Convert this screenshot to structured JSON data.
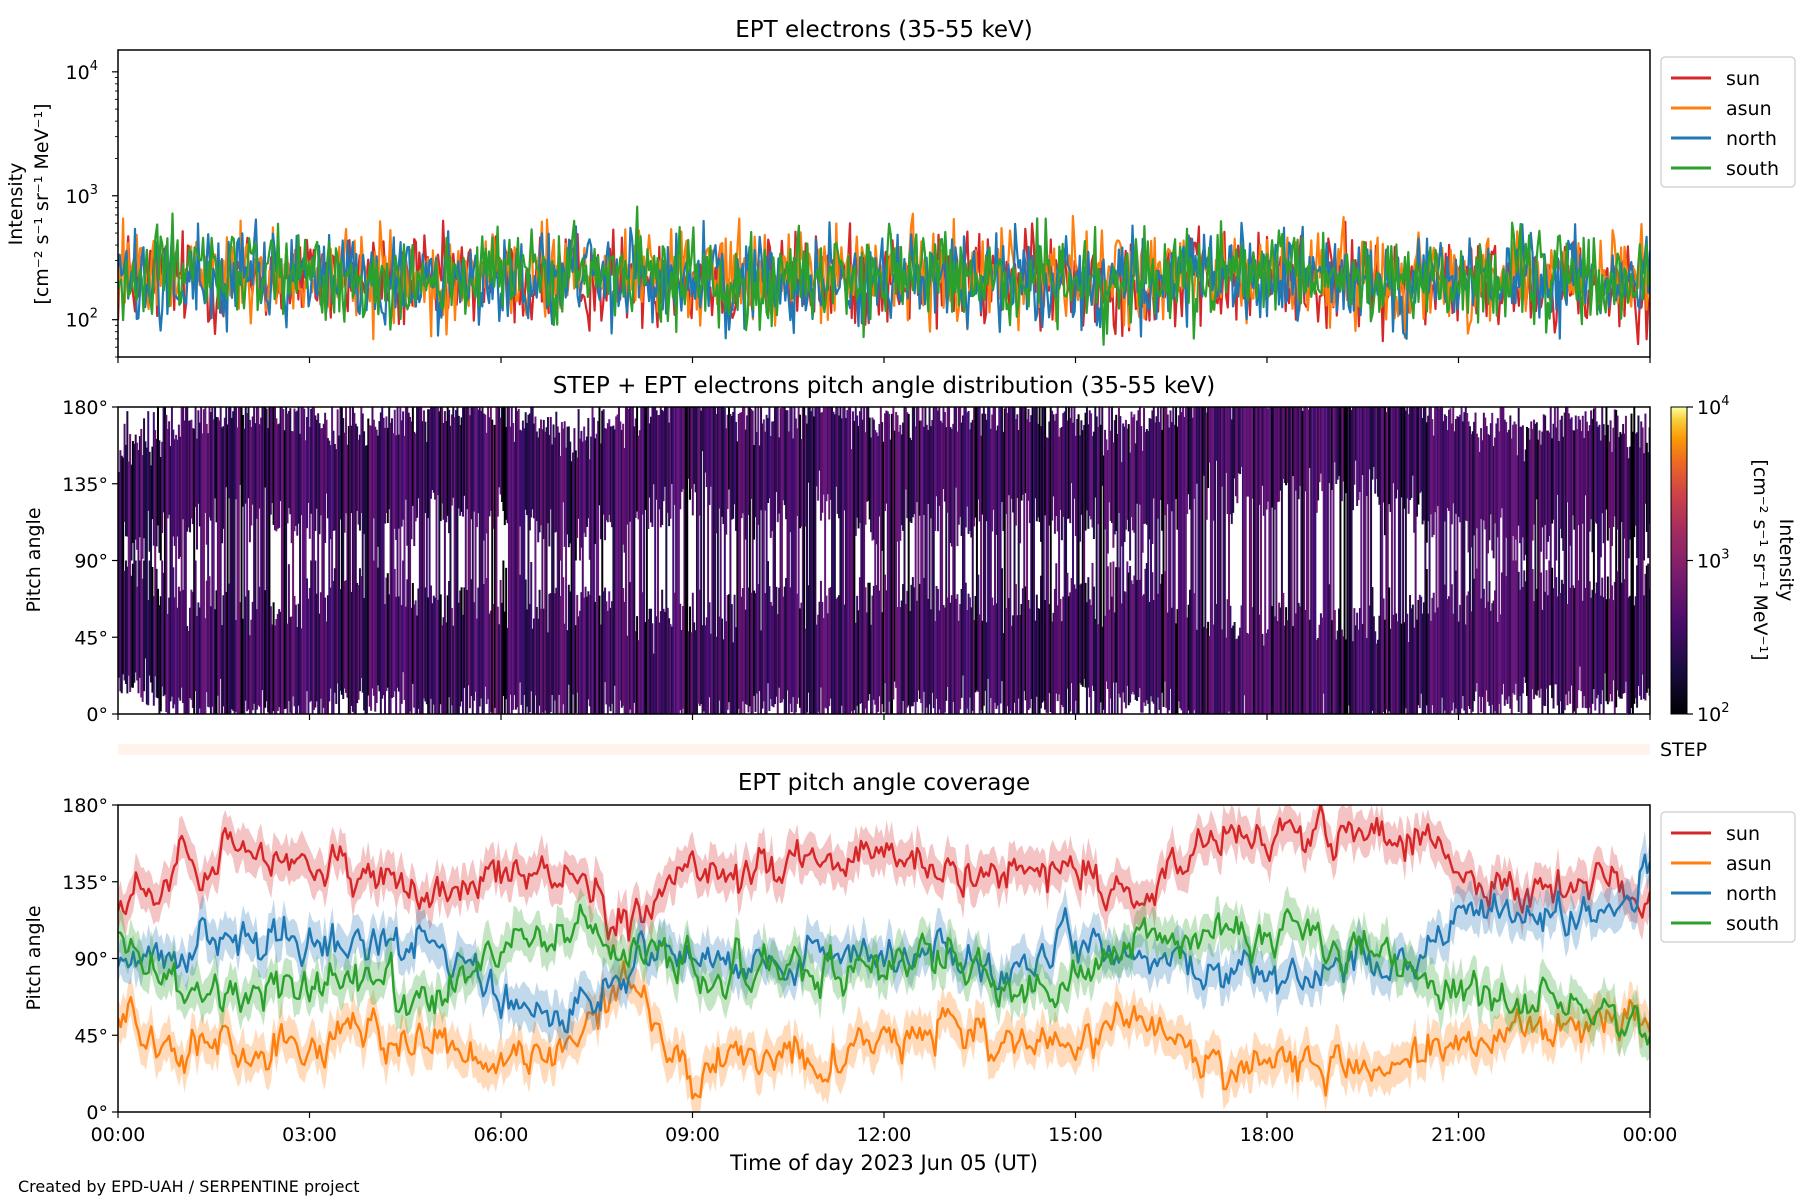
{
  "figure": {
    "credit": "Created by EPD-UAH / SERPENTINE project",
    "time_axis": {
      "label": "Time of day 2023 Jun 05 (UT)",
      "ticks": [
        "00:00",
        "03:00",
        "06:00",
        "09:00",
        "12:00",
        "15:00",
        "18:00",
        "21:00",
        "00:00"
      ],
      "range_hours": [
        0,
        24
      ]
    },
    "colors": {
      "sun": "#d62728",
      "asun": "#ff7f0e",
      "north": "#1f77b4",
      "south": "#2ca02c"
    }
  },
  "chart_data": [
    {
      "id": "intensity",
      "type": "line",
      "title": "EPT electrons (35-55 keV)",
      "ylabel_line1": "Intensity",
      "ylabel_line2": "[cm⁻² s⁻¹ sr⁻¹ MeV⁻¹]",
      "yscale": "log",
      "ylim": [
        50,
        15000
      ],
      "yticks": [
        {
          "value": 100,
          "label": "10",
          "exp": "2"
        },
        {
          "value": 1000,
          "label": "10",
          "exp": "3"
        },
        {
          "value": 10000,
          "label": "10",
          "exp": "4"
        }
      ],
      "legend_position": "outside-right",
      "x": [
        0,
        1,
        2,
        3,
        4,
        5,
        6,
        7,
        8,
        9,
        10,
        11,
        12,
        13,
        14,
        15,
        16,
        17,
        18,
        19,
        20,
        21,
        22,
        23,
        24
      ],
      "series": [
        {
          "name": "sun",
          "color": "#d62728",
          "values": [
            250,
            240,
            230,
            245,
            235,
            225,
            240,
            230,
            250,
            240,
            225,
            235,
            245,
            230,
            240,
            235,
            230,
            225,
            240,
            235,
            230,
            225,
            230,
            220,
            225
          ]
        },
        {
          "name": "asun",
          "color": "#ff7f0e",
          "values": [
            280,
            270,
            260,
            265,
            255,
            250,
            260,
            255,
            265,
            260,
            250,
            255,
            265,
            255,
            260,
            255,
            250,
            245,
            260,
            255,
            250,
            245,
            250,
            240,
            245
          ]
        },
        {
          "name": "north",
          "color": "#1f77b4",
          "values": [
            260,
            250,
            245,
            250,
            240,
            235,
            245,
            240,
            250,
            245,
            240,
            245,
            250,
            240,
            245,
            240,
            235,
            230,
            245,
            240,
            235,
            230,
            235,
            228,
            232
          ]
        },
        {
          "name": "south",
          "color": "#2ca02c",
          "values": [
            270,
            260,
            250,
            255,
            250,
            245,
            255,
            245,
            255,
            250,
            245,
            250,
            255,
            245,
            250,
            245,
            240,
            238,
            250,
            245,
            240,
            236,
            240,
            232,
            236
          ]
        }
      ]
    },
    {
      "id": "pad",
      "type": "heatmap",
      "title": "STEP + EPT electrons pitch angle distribution (35-55 keV)",
      "ylabel": "Pitch angle",
      "ylim": [
        0,
        180
      ],
      "yticks": [
        "0°",
        "45°",
        "90°",
        "135°",
        "180°"
      ],
      "colorbar": {
        "label": "Intensity",
        "units": "[cm⁻² s⁻¹ sr⁻¹ MeV⁻¹]",
        "scale": "log",
        "range": [
          100,
          10000
        ],
        "ticks": [
          {
            "value": 100,
            "label": "10",
            "exp": "2"
          },
          {
            "value": 1000,
            "label": "10",
            "exp": "3"
          },
          {
            "value": 10000,
            "label": "10",
            "exp": "4"
          }
        ],
        "colormap": "inferno"
      },
      "pitch_bands_sun_deg": [
        125,
        140,
        150,
        145,
        135,
        150,
        150,
        130,
        145,
        160,
        140,
        150,
        140,
        145,
        150,
        140,
        135,
        160,
        160,
        165,
        160,
        140,
        135,
        140,
        130
      ],
      "pitch_bands_asun_deg": [
        55,
        40,
        35,
        40,
        45,
        35,
        40,
        40,
        30,
        25,
        40,
        35,
        40,
        40,
        35,
        40,
        45,
        25,
        25,
        25,
        25,
        40,
        45,
        45,
        50
      ],
      "step_strip_label": "STEP"
    },
    {
      "id": "coverage",
      "type": "line",
      "title": "EPT pitch angle coverage",
      "ylabel": "Pitch angle",
      "ylim": [
        0,
        180
      ],
      "yticks": [
        "0°",
        "45°",
        "90°",
        "135°",
        "180°"
      ],
      "legend_position": "outside-right",
      "x": [
        0,
        1,
        2,
        3,
        4,
        5,
        6,
        7,
        8,
        9,
        10,
        11,
        12,
        13,
        14,
        15,
        16,
        17,
        18,
        19,
        20,
        21,
        22,
        23,
        24
      ],
      "series": [
        {
          "name": "sun",
          "color": "#d62728",
          "values": [
            120,
            145,
            150,
            140,
            140,
            125,
            145,
            140,
            110,
            150,
            140,
            150,
            145,
            135,
            140,
            145,
            120,
            160,
            160,
            165,
            165,
            140,
            130,
            130,
            125
          ]
        },
        {
          "name": "asun",
          "color": "#ff7f0e",
          "values": [
            55,
            35,
            35,
            40,
            45,
            40,
            35,
            40,
            75,
            20,
            40,
            30,
            40,
            50,
            40,
            35,
            60,
            25,
            25,
            25,
            25,
            40,
            50,
            50,
            55
          ]
        },
        {
          "name": "north",
          "color": "#1f77b4",
          "values": [
            90,
            95,
            100,
            100,
            95,
            100,
            65,
            60,
            80,
            95,
            85,
            95,
            90,
            95,
            80,
            100,
            90,
            85,
            80,
            80,
            85,
            110,
            115,
            115,
            140
          ]
        },
        {
          "name": "south",
          "color": "#2ca02c",
          "values": [
            100,
            75,
            70,
            75,
            80,
            65,
            100,
            110,
            95,
            80,
            85,
            80,
            85,
            95,
            75,
            80,
            100,
            100,
            100,
            95,
            90,
            70,
            65,
            65,
            40
          ]
        }
      ]
    }
  ]
}
